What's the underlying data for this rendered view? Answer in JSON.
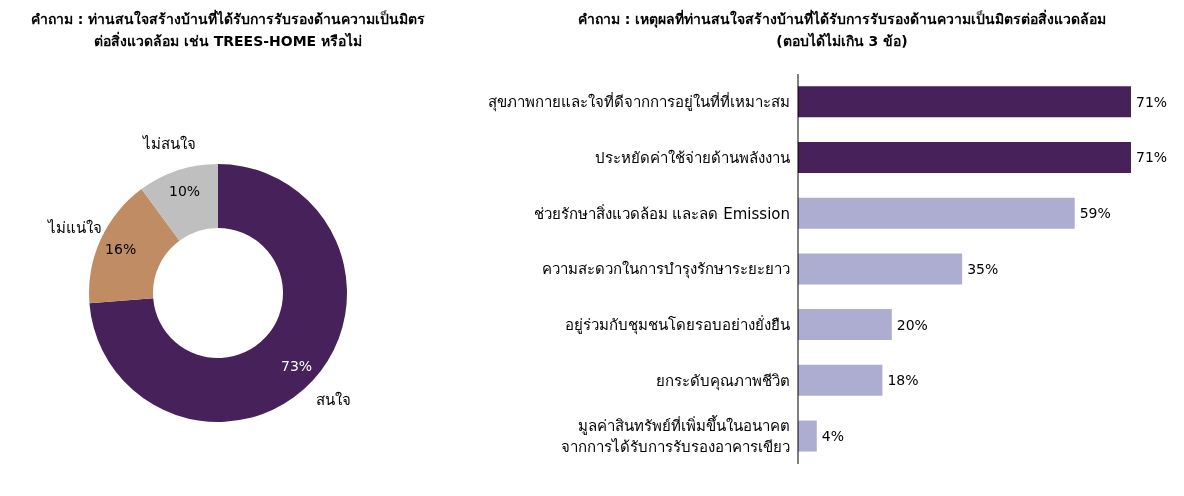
{
  "chart_data": [
    {
      "type": "donut",
      "title": "คำถาม : ท่านสนใจสร้างบ้านที่ได้รับการรับรองด้านความเป็นมิตร\nต่อสิ่งแวดล้อม เช่น TREES-HOME หรือไม่",
      "categories": [
        "สนใจ",
        "ไม่แน่ใจ",
        "ไม่สนใจ"
      ],
      "values": [
        73,
        16,
        10
      ],
      "value_labels": [
        "73%",
        "16%",
        "10%"
      ],
      "colors": [
        "#46215a",
        "#bf8c64",
        "#bfbfbf"
      ],
      "legend": false
    },
    {
      "type": "bar",
      "orientation": "horizontal",
      "title": "คำถาม : เหตุผลที่ท่านสนใจสร้างบ้านที่ได้รับการรับรองด้านความเป็นมิตรต่อสิ่งแวดล้อม",
      "subtitle": "(ตอบได้ไม่เกิน 3 ข้อ)",
      "categories": [
        "สุขภาพกายและใจที่ดีจากการอยู่ในที่ที่เหมาะสม",
        "ประหยัดค่าใช้จ่ายด้านพลังงาน",
        "ช่วยรักษาสิ่งแวดล้อม และลด Emission",
        "ความสะดวกในการบำรุงรักษาระยะยาว",
        "อยู่ร่วมกับชุมชนโดยรอบอย่างยั่งยืน",
        "ยกระดับคุณภาพชีวิต",
        "มูลค่าสินทรัพย์ที่เพิ่มขึ้นในอนาคต\nจากการได้รับการรับรองอาคารเขียว"
      ],
      "values": [
        71,
        71,
        59,
        35,
        20,
        18,
        4
      ],
      "value_labels": [
        "71%",
        "71%",
        "59%",
        "35%",
        "20%",
        "18%",
        "4%"
      ],
      "colors": [
        "#46215a",
        "#46215a",
        "#adadd1",
        "#adadd1",
        "#adadd1",
        "#adadd1",
        "#adadd1"
      ],
      "grid": false,
      "legend": false,
      "tick_labels": "y"
    }
  ]
}
